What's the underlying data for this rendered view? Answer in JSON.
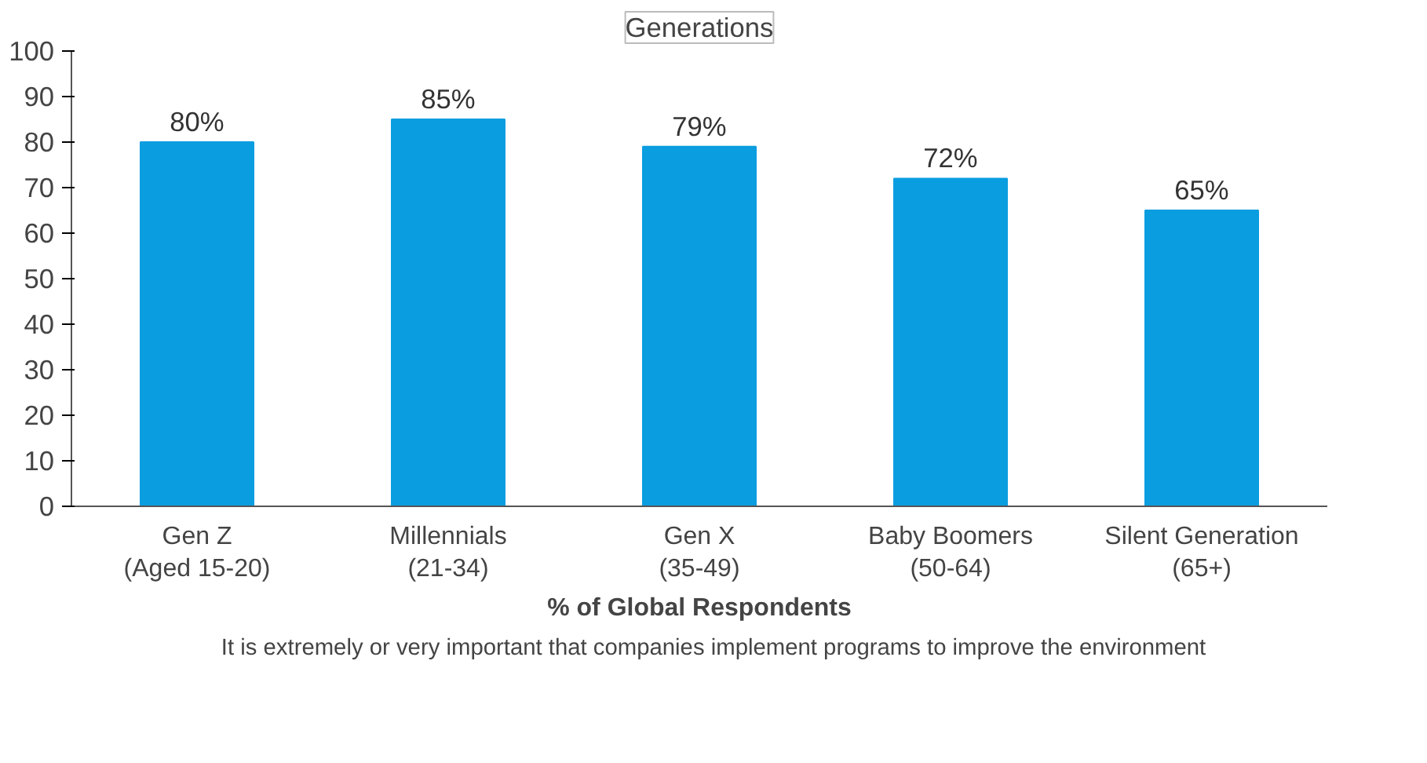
{
  "chart_data": {
    "type": "bar",
    "title": "Generations",
    "xlabel": "% of Global Respondents",
    "categories": [
      "Gen Z\n(Aged 15-20)",
      "Millennials\n(21-34)",
      "Gen X\n(35-49)",
      "Baby Boomers\n(50-64)",
      "Silent Generation\n(65+)"
    ],
    "series": [
      {
        "name": "It is extremely or very important that companies implement programs to improve the environment",
        "color": "#0a9de0",
        "values": [
          80,
          85,
          79,
          72,
          65
        ]
      }
    ],
    "value_labels": [
      "80%",
      "85%",
      "79%",
      "72%",
      "65%"
    ],
    "ylim": [
      0,
      100
    ],
    "yticks": [
      0,
      10,
      20,
      30,
      40,
      50,
      60,
      70,
      80,
      90,
      100
    ],
    "grid": false,
    "legend": "bottom"
  }
}
